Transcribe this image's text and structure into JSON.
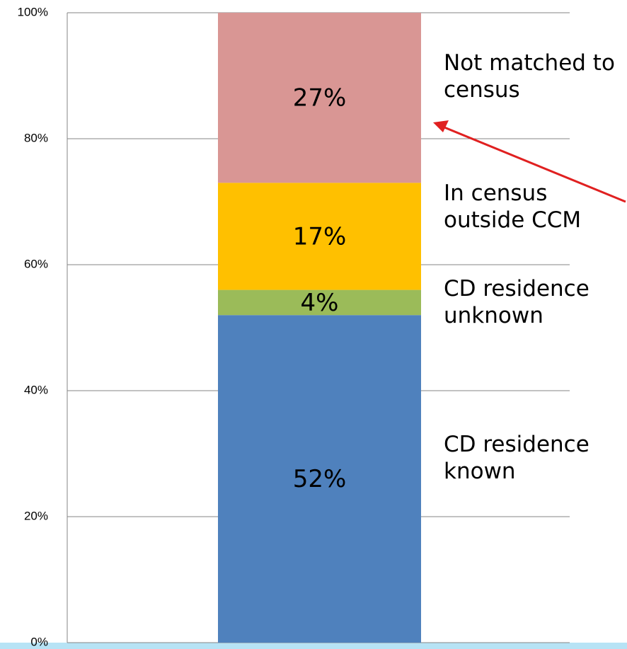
{
  "chart_data": {
    "type": "stacked_bar",
    "categories": [
      null
    ],
    "series": [
      {
        "name": "CD residence known",
        "color": "#4f81bd",
        "values": [
          52
        ],
        "value_labels": [
          "52%"
        ]
      },
      {
        "name": "CD residence unknown",
        "color": "#9bbb59",
        "values": [
          4
        ],
        "value_labels": [
          "4%"
        ]
      },
      {
        "name": "In census outside CCM",
        "color": "#ffc000",
        "values": [
          17
        ],
        "value_labels": [
          "17%"
        ]
      },
      {
        "name": "Not matched to census",
        "color": "#d99694",
        "values": [
          27
        ],
        "value_labels": [
          "27%"
        ]
      }
    ],
    "ylim": [
      0,
      100
    ],
    "yticks": [
      {
        "value": 0,
        "label": "0%"
      },
      {
        "value": 20,
        "label": "20%"
      },
      {
        "value": 40,
        "label": "40%"
      },
      {
        "value": 60,
        "label": "60%"
      },
      {
        "value": 80,
        "label": "80%"
      },
      {
        "value": 100,
        "label": "100%"
      }
    ],
    "grid": true
  }
}
